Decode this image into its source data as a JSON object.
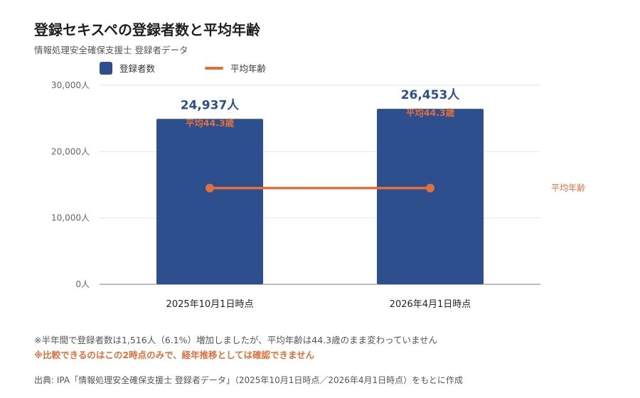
{
  "header": {
    "title": "登録セキスペの登録者数と平均年齢",
    "subtitle": "情報処理安全確保支援士 登録者データ"
  },
  "legend": {
    "bar_label": "登録者数",
    "line_label": "平均年齢"
  },
  "chart_data": {
    "type": "bar",
    "categories": [
      "2025年10月1日時点",
      "2026年4月1日時点"
    ],
    "series": [
      {
        "name": "登録者数",
        "type": "bar",
        "values": [
          24937,
          26453
        ],
        "labels": [
          "24,937人",
          "26,453人"
        ],
        "color": "#2d4f8e"
      },
      {
        "name": "平均年齢",
        "type": "line",
        "values": [
          44.3,
          44.3
        ],
        "labels": [
          "平均44.3歳",
          "平均44.3歳"
        ],
        "color": "#e2703a"
      }
    ],
    "y_ticks": [
      "0人",
      "10,000人",
      "20,000人",
      "30,000人"
    ],
    "ylim": [
      0,
      30000
    ],
    "line_axis_label": "平均年齢",
    "grid": true
  },
  "notes": {
    "note1": "※半年間で登録者数は1,516人（6.1%）増加しましたが、平均年齢は44.3歳のまま変わっていません",
    "note2": "※比較できるのはこの2時点のみで、経年推移としては確認できません",
    "source": "出典: IPA「情報処理安全確保支援士 登録者データ」（2025年10月1日時点／2026年4月1日時点）をもとに作成"
  }
}
